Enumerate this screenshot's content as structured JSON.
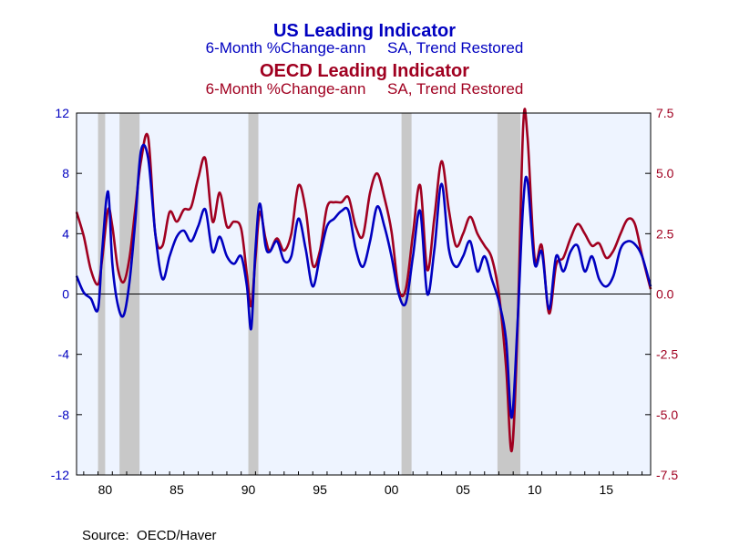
{
  "titles": {
    "us_title": "US Leading Indicator",
    "us_subtitle": "6-Month %Change-ann     SA, Trend Restored",
    "oecd_title": "OECD Leading Indicator",
    "oecd_subtitle": "6-Month %Change-ann     SA, Trend Restored"
  },
  "source": "Source:  OECD/Haver",
  "colors": {
    "us": "#0000c0",
    "oecd": "#a00020",
    "plot_bg": "#eef4ff",
    "recession": "#c8c8c8",
    "axis": "#000000"
  },
  "chart_data": {
    "type": "line",
    "x_range": [
      1978.5,
      2018.6
    ],
    "x_tick_values": [
      1980,
      1985,
      1990,
      1995,
      2000,
      2005,
      2010,
      2015
    ],
    "x_tick_labels": [
      "80",
      "85",
      "90",
      "95",
      "00",
      "05",
      "10",
      "15"
    ],
    "left_axis": {
      "range": [
        -12,
        12
      ],
      "ticks": [
        12,
        8,
        4,
        0,
        -4,
        -8,
        -12
      ],
      "tick_labels": [
        "12",
        "8",
        "4",
        "0",
        "-4",
        "-8",
        "-12"
      ]
    },
    "right_axis": {
      "range": [
        -7.5,
        7.5
      ],
      "ticks": [
        7.5,
        5.0,
        2.5,
        0.0,
        -2.5,
        -5.0,
        -7.5
      ],
      "tick_labels": [
        "7.5",
        "5.0",
        "2.5",
        "0.0",
        "-2.5",
        "-5.0",
        "-7.5"
      ]
    },
    "recessions": [
      [
        1980.0,
        1980.5
      ],
      [
        1981.5,
        1982.9
      ],
      [
        1990.5,
        1991.2
      ],
      [
        2001.2,
        2001.9
      ],
      [
        2007.9,
        2009.5
      ]
    ],
    "zero_line": true,
    "series": [
      {
        "axis": "left",
        "color": "#0000c0",
        "x": [
          1978.5,
          1979.0,
          1979.5,
          1980.0,
          1980.3,
          1980.7,
          1981.0,
          1981.4,
          1981.8,
          1982.2,
          1982.6,
          1983.0,
          1983.5,
          1984.0,
          1984.5,
          1985.0,
          1985.5,
          1986.0,
          1986.5,
          1987.0,
          1987.5,
          1988.0,
          1988.5,
          1989.0,
          1989.5,
          1990.0,
          1990.4,
          1990.7,
          1991.0,
          1991.3,
          1991.7,
          1992.0,
          1992.5,
          1993.0,
          1993.5,
          1994.0,
          1994.5,
          1995.0,
          1995.5,
          1996.0,
          1996.5,
          1997.0,
          1997.5,
          1998.0,
          1998.5,
          1999.0,
          1999.5,
          2000.0,
          2000.5,
          2001.0,
          2001.5,
          2002.0,
          2002.5,
          2003.0,
          2003.5,
          2004.0,
          2004.5,
          2005.0,
          2005.5,
          2006.0,
          2006.5,
          2007.0,
          2007.5,
          2008.0,
          2008.5,
          2008.9,
          2009.3,
          2009.7,
          2010.0,
          2010.5,
          2011.0,
          2011.5,
          2012.0,
          2012.5,
          2013.0,
          2013.5,
          2014.0,
          2014.5,
          2015.0,
          2015.5,
          2016.0,
          2016.5,
          2017.0,
          2017.5,
          2018.0,
          2018.6
        ],
        "y": [
          1.2,
          0.1,
          -0.3,
          -1.0,
          3.0,
          6.8,
          2.0,
          -0.8,
          -1.4,
          0.8,
          4.8,
          9.5,
          9.0,
          4.0,
          1.0,
          2.5,
          3.8,
          4.2,
          3.5,
          4.5,
          5.6,
          2.8,
          3.8,
          2.5,
          2.0,
          2.5,
          0.5,
          -2.3,
          3.0,
          6.0,
          3.2,
          2.8,
          3.5,
          2.2,
          2.5,
          5.0,
          3.0,
          0.5,
          2.5,
          4.5,
          5.0,
          5.5,
          5.5,
          3.0,
          1.8,
          3.5,
          5.8,
          4.5,
          2.5,
          0.0,
          -0.6,
          2.5,
          5.5,
          0.0,
          3.0,
          7.3,
          3.0,
          1.8,
          2.5,
          3.5,
          1.5,
          2.5,
          1.0,
          -0.5,
          -3.0,
          -8.2,
          -2.0,
          6.0,
          7.5,
          2.0,
          2.8,
          -1.0,
          2.5,
          1.5,
          2.8,
          3.2,
          1.5,
          2.5,
          1.0,
          0.5,
          1.2,
          3.0,
          3.5,
          3.3,
          2.5,
          0.5
        ]
      },
      {
        "axis": "right",
        "color": "#a00020",
        "x": [
          1978.5,
          1979.0,
          1979.5,
          1980.0,
          1980.3,
          1980.7,
          1981.0,
          1981.4,
          1981.8,
          1982.2,
          1982.6,
          1983.0,
          1983.5,
          1984.0,
          1984.5,
          1985.0,
          1985.5,
          1986.0,
          1986.5,
          1987.0,
          1987.5,
          1988.0,
          1988.5,
          1989.0,
          1989.5,
          1990.0,
          1990.4,
          1990.7,
          1991.0,
          1991.3,
          1991.7,
          1992.0,
          1992.5,
          1993.0,
          1993.5,
          1994.0,
          1994.5,
          1995.0,
          1995.5,
          1996.0,
          1996.5,
          1997.0,
          1997.5,
          1998.0,
          1998.5,
          1999.0,
          1999.5,
          2000.0,
          2000.5,
          2001.0,
          2001.5,
          2002.0,
          2002.5,
          2003.0,
          2003.5,
          2004.0,
          2004.5,
          2005.0,
          2005.5,
          2006.0,
          2006.5,
          2007.0,
          2007.5,
          2008.0,
          2008.5,
          2008.9,
          2009.3,
          2009.7,
          2010.0,
          2010.5,
          2011.0,
          2011.5,
          2012.0,
          2012.5,
          2013.0,
          2013.5,
          2014.0,
          2014.5,
          2015.0,
          2015.5,
          2016.0,
          2016.5,
          2017.0,
          2017.5,
          2018.0,
          2018.6
        ],
        "y": [
          3.4,
          2.4,
          1.0,
          0.4,
          1.5,
          3.5,
          2.8,
          1.0,
          0.5,
          1.5,
          3.5,
          5.5,
          6.5,
          2.5,
          2.0,
          3.4,
          3.0,
          3.5,
          3.6,
          4.8,
          5.6,
          3.0,
          4.2,
          2.8,
          3.0,
          2.7,
          0.8,
          -0.5,
          1.5,
          3.4,
          2.3,
          1.8,
          2.3,
          1.8,
          2.5,
          4.5,
          3.5,
          1.2,
          1.8,
          3.6,
          3.8,
          3.8,
          4.0,
          2.8,
          2.4,
          4.2,
          5.0,
          4.0,
          2.6,
          0.2,
          0.2,
          2.5,
          4.5,
          1.0,
          3.2,
          5.5,
          3.5,
          2.0,
          2.5,
          3.2,
          2.5,
          2.0,
          1.5,
          0.0,
          -3.0,
          -6.5,
          -1.5,
          7.0,
          6.5,
          1.5,
          2.0,
          -0.8,
          1.2,
          1.5,
          2.3,
          2.9,
          2.5,
          2.0,
          2.1,
          1.5,
          1.8,
          2.5,
          3.1,
          2.9,
          1.6,
          0.2
        ]
      }
    ]
  }
}
